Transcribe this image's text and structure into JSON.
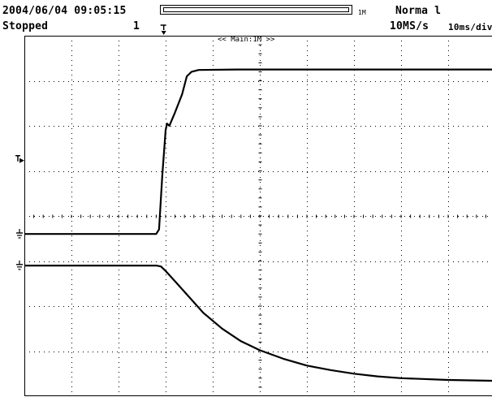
{
  "header": {
    "datetime": "2004/06/04 09:05:15",
    "status": "Stopped",
    "acq_count": "1",
    "memory_label": "1M",
    "trigger_mode": "Norma l",
    "sample_rate": "10MS/s",
    "time_div": "10ms/div",
    "zoom_label": "<< Main:1M >>"
  },
  "record_position": 1.0,
  "colors": {
    "trace": "#000000",
    "grid": "#000000",
    "background": "#ffffff"
  },
  "display": {
    "h_divisions": 10,
    "v_divisions": 8,
    "grid_style": "dotted"
  },
  "icons": {
    "trigger_position": "trigger-position-marker-icon",
    "trigger_level": "trigger-level-marker-icon",
    "ground_ch1": "ground-marker-icon",
    "ground_ch2": "ground-marker-icon"
  },
  "chart_data": {
    "type": "line",
    "x_unit": "div",
    "y_unit": "div",
    "xlim": [
      0,
      10
    ],
    "ylim": [
      0,
      8
    ],
    "series": [
      {
        "points": [
          [
            0,
            3.6
          ],
          [
            2.8,
            3.6
          ],
          [
            2.86,
            3.7
          ],
          [
            2.93,
            4.9
          ],
          [
            3.0,
            5.9
          ],
          [
            3.03,
            6.05
          ],
          [
            3.08,
            6.0
          ],
          [
            3.2,
            6.3
          ],
          [
            3.35,
            6.7
          ],
          [
            3.45,
            7.1
          ],
          [
            3.55,
            7.2
          ],
          [
            3.7,
            7.24
          ],
          [
            4.5,
            7.25
          ],
          [
            6,
            7.25
          ],
          [
            8,
            7.25
          ],
          [
            10,
            7.25
          ]
        ]
      },
      {
        "points": [
          [
            0,
            2.9
          ],
          [
            2.8,
            2.9
          ],
          [
            2.9,
            2.88
          ],
          [
            3.0,
            2.78
          ],
          [
            3.2,
            2.55
          ],
          [
            3.5,
            2.2
          ],
          [
            3.8,
            1.85
          ],
          [
            4.2,
            1.5
          ],
          [
            4.6,
            1.22
          ],
          [
            5.0,
            1.02
          ],
          [
            5.5,
            0.83
          ],
          [
            6.0,
            0.68
          ],
          [
            6.5,
            0.58
          ],
          [
            7.0,
            0.5
          ],
          [
            7.5,
            0.44
          ],
          [
            8.0,
            0.4
          ],
          [
            9.0,
            0.36
          ],
          [
            10,
            0.34
          ]
        ]
      }
    ],
    "markers": {
      "trigger_level_div": 5.23,
      "ground_ch1_div": 3.55,
      "ground_ch2_div": 2.85,
      "trigger_position_div": 2.96
    }
  }
}
